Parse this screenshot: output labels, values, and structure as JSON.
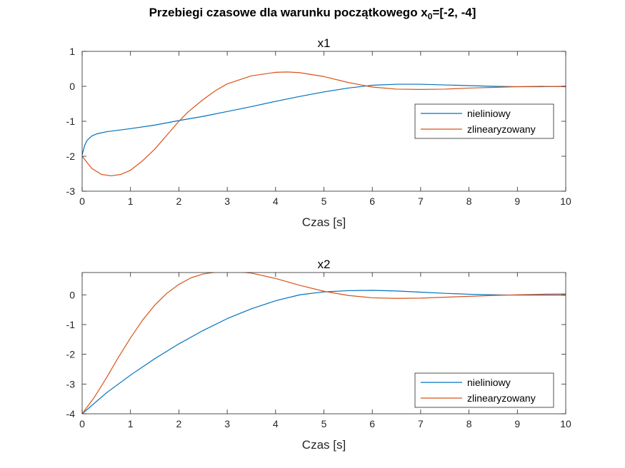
{
  "suptitle": {
    "main": "Przebiegi czasowe dla warunku początkowego x",
    "sub": "0",
    "tail": "=[-2, -4]"
  },
  "colors": {
    "series1": "#0072BD",
    "series2": "#D95319",
    "axis": "#262626"
  },
  "chart_data": [
    {
      "type": "line",
      "title": "x1",
      "xlabel": "Czas [s]",
      "ylabel": "",
      "xlim": [
        0,
        10
      ],
      "ylim": [
        -3,
        1
      ],
      "xticks": [
        0,
        1,
        2,
        3,
        4,
        5,
        6,
        7,
        8,
        9,
        10
      ],
      "yticks": [
        -3,
        -2,
        -1,
        0,
        1
      ],
      "legend_position": "right",
      "series": [
        {
          "name": "nieliniowy",
          "x": [
            0,
            0.05,
            0.1,
            0.2,
            0.3,
            0.5,
            1,
            1.5,
            2,
            2.5,
            3,
            3.5,
            4,
            4.5,
            5,
            5.5,
            6,
            6.5,
            7,
            7.5,
            8,
            8.5,
            9,
            9.5,
            10
          ],
          "y": [
            -1.96,
            -1.7,
            -1.55,
            -1.42,
            -1.36,
            -1.3,
            -1.21,
            -1.11,
            -0.98,
            -0.86,
            -0.72,
            -0.58,
            -0.43,
            -0.29,
            -0.16,
            -0.05,
            0.03,
            0.06,
            0.06,
            0.04,
            0.02,
            0.0,
            -0.01,
            -0.01,
            0.0
          ]
        },
        {
          "name": "zlinearyzowany",
          "x": [
            0,
            0.2,
            0.4,
            0.6,
            0.8,
            1,
            1.25,
            1.5,
            1.75,
            2,
            2.2,
            2.5,
            2.75,
            3,
            3.5,
            4,
            4.25,
            4.5,
            5,
            5.5,
            6,
            6.5,
            7,
            7.5,
            8,
            8.5,
            9,
            9.5,
            10
          ],
          "y": [
            -2.0,
            -2.35,
            -2.52,
            -2.56,
            -2.52,
            -2.4,
            -2.13,
            -1.8,
            -1.4,
            -1.0,
            -0.72,
            -0.38,
            -0.13,
            0.07,
            0.3,
            0.4,
            0.41,
            0.39,
            0.28,
            0.11,
            -0.02,
            -0.08,
            -0.09,
            -0.08,
            -0.05,
            -0.03,
            -0.01,
            0.0,
            -0.01
          ]
        }
      ]
    },
    {
      "type": "line",
      "title": "x2",
      "xlabel": "Czas [s]",
      "ylabel": "",
      "xlim": [
        0,
        10
      ],
      "ylim": [
        -4,
        0.75
      ],
      "xticks": [
        0,
        1,
        2,
        3,
        4,
        5,
        6,
        7,
        8,
        9,
        10
      ],
      "yticks": [
        -4,
        -3,
        -2,
        -1,
        0
      ],
      "legend_position": "bottom-right",
      "series": [
        {
          "name": "nieliniowy",
          "x": [
            0,
            0.5,
            1,
            1.5,
            2,
            2.5,
            3,
            3.5,
            4,
            4.5,
            5,
            5.5,
            6,
            6.5,
            7,
            7.5,
            8,
            8.5,
            9,
            9.5,
            10
          ],
          "y": [
            -4.0,
            -3.3,
            -2.7,
            -2.15,
            -1.65,
            -1.2,
            -0.8,
            -0.47,
            -0.2,
            0.0,
            0.1,
            0.14,
            0.15,
            0.13,
            0.09,
            0.05,
            0.02,
            0.0,
            -0.01,
            -0.01,
            -0.01
          ]
        },
        {
          "name": "zlinearyzowany",
          "x": [
            0,
            0.25,
            0.5,
            0.75,
            1,
            1.25,
            1.5,
            1.75,
            2,
            2.25,
            2.5,
            2.75,
            3,
            3.25,
            3.5,
            4,
            4.5,
            5,
            5.5,
            6,
            6.5,
            7,
            7.5,
            8,
            8.5,
            9,
            9.5,
            10
          ],
          "y": [
            -4.0,
            -3.45,
            -2.8,
            -2.1,
            -1.45,
            -0.85,
            -0.35,
            0.05,
            0.35,
            0.57,
            0.7,
            0.76,
            0.78,
            0.77,
            0.73,
            0.55,
            0.32,
            0.12,
            -0.02,
            -0.1,
            -0.12,
            -0.11,
            -0.08,
            -0.05,
            -0.02,
            0.0,
            0.02,
            0.03
          ]
        }
      ]
    }
  ]
}
